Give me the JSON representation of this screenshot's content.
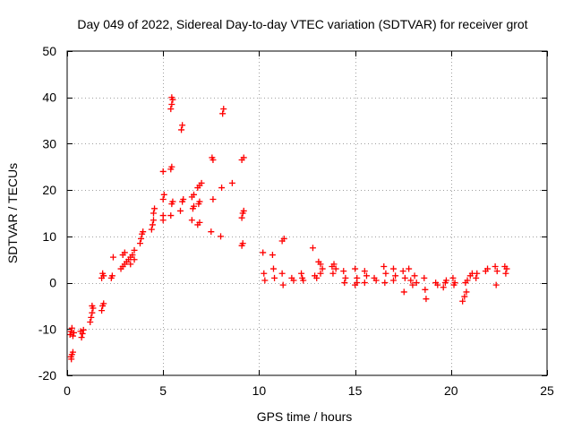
{
  "chart_data": {
    "type": "scatter",
    "title": "Day 049 of 2022, Sidereal Day-to-day VTEC variation (SDTVAR) for receiver grot",
    "xlabel": "GPS time / hours",
    "ylabel": "SDTVAR / TECUs",
    "xlim": [
      0,
      25
    ],
    "ylim": [
      -20,
      50
    ],
    "xticks": [
      0,
      5,
      10,
      15,
      20,
      25
    ],
    "yticks": [
      -20,
      -10,
      0,
      10,
      20,
      30,
      40,
      50
    ],
    "xtick_labels": [
      "0",
      "5",
      "10",
      "15",
      "20",
      "25"
    ],
    "ytick_labels": [
      "-20",
      "-10",
      "0",
      "10",
      "20",
      "30",
      "40",
      "50"
    ],
    "grid": true,
    "marker": "+",
    "marker_color": "#ff0000",
    "series": [
      {
        "name": "SDTVAR",
        "points": [
          [
            0.2,
            -10.5
          ],
          [
            0.3,
            -11.5
          ],
          [
            0.25,
            -9.8
          ],
          [
            0.35,
            -10.8
          ],
          [
            0.15,
            -11.2
          ],
          [
            0.2,
            -16.0
          ],
          [
            0.25,
            -15.5
          ],
          [
            0.3,
            -15.0
          ],
          [
            0.22,
            -16.5
          ],
          [
            0.7,
            -10.5
          ],
          [
            0.8,
            -11.0
          ],
          [
            0.75,
            -11.8
          ],
          [
            0.85,
            -10.2
          ],
          [
            1.2,
            -8.5
          ],
          [
            1.25,
            -7.5
          ],
          [
            1.3,
            -6.5
          ],
          [
            1.35,
            -5.5
          ],
          [
            1.3,
            -5.0
          ],
          [
            1.8,
            -6.0
          ],
          [
            1.85,
            -5.0
          ],
          [
            1.9,
            -4.5
          ],
          [
            1.8,
            1.0
          ],
          [
            1.9,
            1.5
          ],
          [
            1.85,
            2.0
          ],
          [
            2.3,
            1.0
          ],
          [
            2.35,
            1.5
          ],
          [
            2.4,
            5.5
          ],
          [
            2.8,
            3.0
          ],
          [
            2.9,
            3.5
          ],
          [
            3.0,
            4.0
          ],
          [
            3.1,
            4.5
          ],
          [
            2.9,
            6.0
          ],
          [
            3.0,
            6.5
          ],
          [
            3.2,
            5.0
          ],
          [
            3.3,
            5.5
          ],
          [
            3.4,
            6.0
          ],
          [
            3.5,
            7.0
          ],
          [
            3.3,
            4.0
          ],
          [
            3.5,
            5.0
          ],
          [
            3.8,
            8.5
          ],
          [
            3.85,
            9.5
          ],
          [
            3.9,
            10.5
          ],
          [
            3.95,
            11.0
          ],
          [
            4.4,
            11.5
          ],
          [
            4.45,
            12.5
          ],
          [
            4.5,
            13.5
          ],
          [
            4.5,
            15.0
          ],
          [
            4.55,
            16.0
          ],
          [
            5.0,
            13.5
          ],
          [
            5.0,
            14.5
          ],
          [
            5.0,
            18.0
          ],
          [
            5.05,
            19.0
          ],
          [
            5.0,
            24.0
          ],
          [
            5.4,
            14.5
          ],
          [
            5.45,
            17.0
          ],
          [
            5.5,
            17.5
          ],
          [
            5.4,
            24.5
          ],
          [
            5.45,
            25.0
          ],
          [
            5.4,
            37.5
          ],
          [
            5.45,
            38.5
          ],
          [
            5.5,
            39.5
          ],
          [
            5.45,
            40.0
          ],
          [
            5.9,
            15.5
          ],
          [
            6.0,
            17.5
          ],
          [
            6.05,
            18.0
          ],
          [
            5.95,
            33.0
          ],
          [
            6.0,
            34.0
          ],
          [
            6.5,
            13.5
          ],
          [
            6.55,
            16.0
          ],
          [
            6.6,
            16.5
          ],
          [
            6.5,
            18.5
          ],
          [
            6.6,
            19.0
          ],
          [
            6.8,
            12.5
          ],
          [
            6.9,
            13.0
          ],
          [
            6.85,
            17.0
          ],
          [
            6.9,
            17.5
          ],
          [
            6.8,
            20.5
          ],
          [
            6.9,
            21.0
          ],
          [
            7.0,
            21.5
          ],
          [
            7.5,
            11.0
          ],
          [
            7.6,
            18.0
          ],
          [
            7.55,
            27.0
          ],
          [
            7.6,
            26.5
          ],
          [
            8.0,
            10.0
          ],
          [
            8.05,
            20.5
          ],
          [
            8.1,
            36.5
          ],
          [
            8.15,
            37.5
          ],
          [
            8.6,
            21.5
          ],
          [
            9.1,
            8.0
          ],
          [
            9.15,
            8.5
          ],
          [
            9.1,
            14.0
          ],
          [
            9.15,
            15.0
          ],
          [
            9.2,
            15.5
          ],
          [
            9.1,
            26.5
          ],
          [
            9.2,
            27.0
          ],
          [
            10.2,
            6.5
          ],
          [
            10.25,
            2.0
          ],
          [
            10.3,
            0.5
          ],
          [
            10.7,
            6.0
          ],
          [
            10.75,
            3.0
          ],
          [
            10.8,
            1.0
          ],
          [
            11.2,
            9.0
          ],
          [
            11.3,
            9.5
          ],
          [
            11.2,
            2.0
          ],
          [
            11.25,
            -0.5
          ],
          [
            11.7,
            1.0
          ],
          [
            11.8,
            0.5
          ],
          [
            12.2,
            2.0
          ],
          [
            12.25,
            1.0
          ],
          [
            12.3,
            0.5
          ],
          [
            12.8,
            7.5
          ],
          [
            12.9,
            1.5
          ],
          [
            13.0,
            1.0
          ],
          [
            13.1,
            4.5
          ],
          [
            13.2,
            4.0
          ],
          [
            13.3,
            3.0
          ],
          [
            13.2,
            2.0
          ],
          [
            13.8,
            3.5
          ],
          [
            13.9,
            4.0
          ],
          [
            14.0,
            3.0
          ],
          [
            13.85,
            2.0
          ],
          [
            14.4,
            2.5
          ],
          [
            14.5,
            1.0
          ],
          [
            14.45,
            0.0
          ],
          [
            15.0,
            3.0
          ],
          [
            15.1,
            1.0
          ],
          [
            15.0,
            -0.5
          ],
          [
            15.1,
            0.0
          ],
          [
            15.5,
            2.5
          ],
          [
            15.6,
            1.5
          ],
          [
            15.5,
            0.0
          ],
          [
            16.0,
            1.0
          ],
          [
            16.1,
            0.5
          ],
          [
            16.5,
            3.5
          ],
          [
            16.6,
            2.0
          ],
          [
            16.55,
            0.0
          ],
          [
            17.0,
            3.0
          ],
          [
            17.1,
            1.5
          ],
          [
            17.0,
            0.5
          ],
          [
            17.5,
            2.5
          ],
          [
            17.6,
            1.0
          ],
          [
            17.55,
            -2.0
          ],
          [
            17.8,
            3.0
          ],
          [
            17.9,
            0.5
          ],
          [
            18.0,
            -0.5
          ],
          [
            18.1,
            1.5
          ],
          [
            18.2,
            0.0
          ],
          [
            18.6,
            1.0
          ],
          [
            18.65,
            -1.5
          ],
          [
            18.7,
            -3.5
          ],
          [
            19.2,
            0.0
          ],
          [
            19.3,
            -0.5
          ],
          [
            19.6,
            -1.0
          ],
          [
            19.7,
            0.0
          ],
          [
            19.75,
            0.5
          ],
          [
            20.1,
            1.0
          ],
          [
            20.2,
            0.0
          ],
          [
            20.15,
            -0.5
          ],
          [
            20.6,
            -4.0
          ],
          [
            20.7,
            -3.0
          ],
          [
            20.8,
            -2.0
          ],
          [
            20.75,
            0.0
          ],
          [
            20.85,
            0.5
          ],
          [
            21.0,
            1.5
          ],
          [
            21.1,
            2.0
          ],
          [
            21.3,
            1.0
          ],
          [
            21.35,
            2.0
          ],
          [
            21.8,
            2.5
          ],
          [
            21.9,
            3.0
          ],
          [
            22.3,
            3.5
          ],
          [
            22.4,
            2.5
          ],
          [
            22.35,
            -0.5
          ],
          [
            22.8,
            3.5
          ],
          [
            22.85,
            2.0
          ],
          [
            22.9,
            3.0
          ]
        ]
      }
    ]
  }
}
